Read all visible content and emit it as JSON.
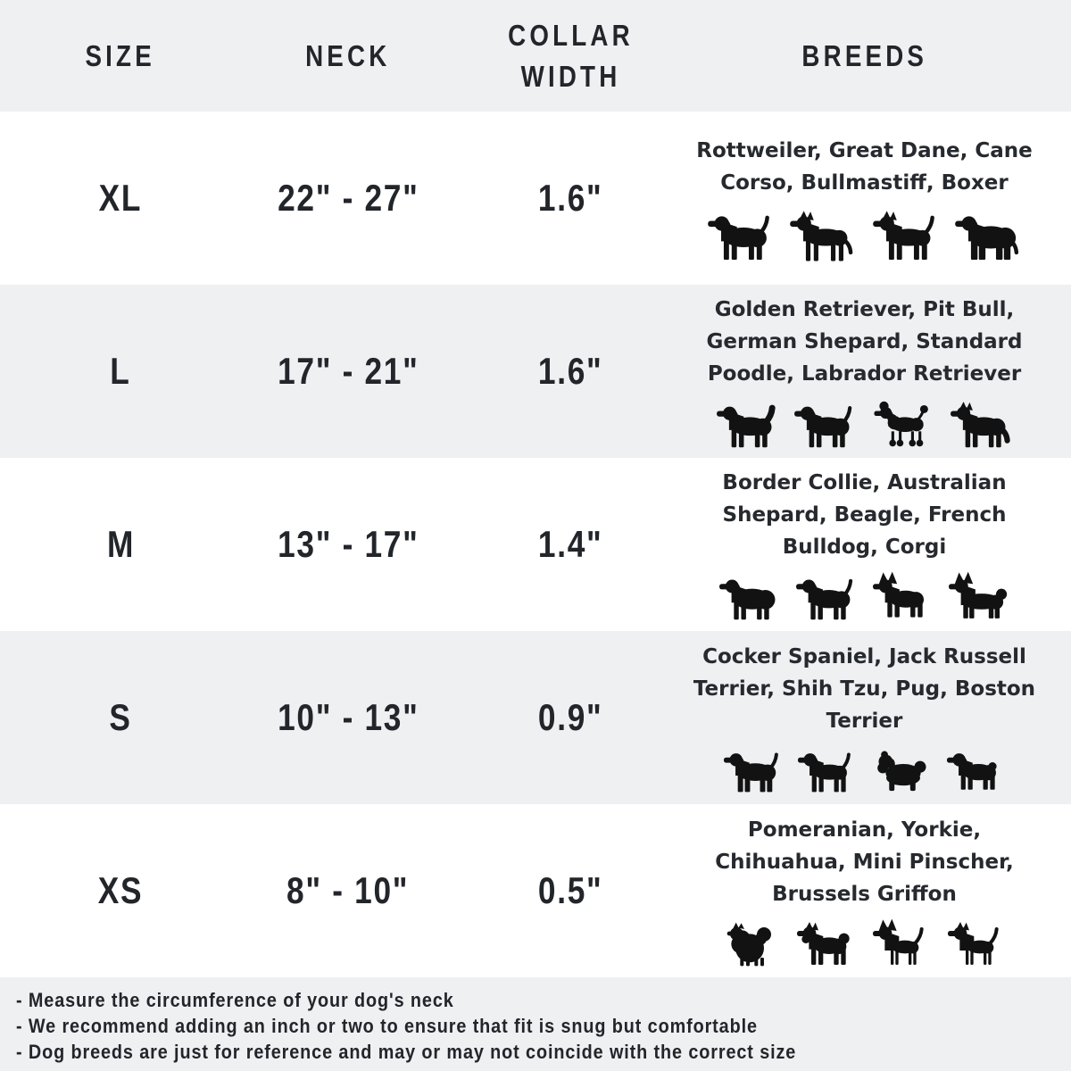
{
  "header": {
    "columns": [
      "SIZE",
      "NECK",
      "COLLAR WIDTH",
      "BREEDS"
    ]
  },
  "table": {
    "rows": [
      {
        "size": "XL",
        "neck": "22\" - 27\"",
        "collar_width": "1.6\"",
        "breeds": "Rottweiler, Great Dane, Cane Corso, Bullmastiff, Boxer",
        "icons": [
          "rottweiler-icon",
          "great-dane-icon",
          "cane-corso-icon",
          "bullmastiff-icon"
        ]
      },
      {
        "size": "L",
        "neck": "17\" - 21\"",
        "collar_width": "1.6\"",
        "breeds": "Golden Retriever, Pit Bull, German Shepard, Standard Poodle, Labrador Retriever",
        "icons": [
          "golden-retriever-icon",
          "labrador-icon",
          "poodle-icon",
          "german-shepard-icon"
        ]
      },
      {
        "size": "M",
        "neck": "13\" - 17\"",
        "collar_width": "1.4\"",
        "breeds": "Border Collie, Australian Shepard, Beagle, French Bulldog, Corgi",
        "icons": [
          "australian-shepard-icon",
          "beagle-icon",
          "french-bulldog-icon",
          "corgi-icon"
        ]
      },
      {
        "size": "S",
        "neck": "10\" - 13\"",
        "collar_width": "0.9\"",
        "breeds": "Cocker Spaniel, Jack Russell Terrier, Shih Tzu, Pug, Boston Terrier",
        "icons": [
          "cocker-spaniel-icon",
          "jack-russell-icon",
          "shih-tzu-icon",
          "pug-icon"
        ]
      },
      {
        "size": "XS",
        "neck": "8\" - 10\"",
        "collar_width": "0.5\"",
        "breeds": "Pomeranian, Yorkie, Chihuahua, Mini Pinscher, Brussels Griffon",
        "icons": [
          "pomeranian-icon",
          "yorkie-icon",
          "chihuahua-icon",
          "mini-pinscher-icon"
        ]
      }
    ]
  },
  "notes": {
    "lines": [
      "- Measure the circumference of your dog's neck",
      "- We recommend adding an inch or two to ensure that fit is snug but comfortable",
      "- Dog breeds are just for reference and may or may not coincide with the correct size"
    ]
  },
  "colors": {
    "stripe": "#eef0f2",
    "background": "#ffffff",
    "text": "#22252a",
    "silhouette": "#121212"
  }
}
